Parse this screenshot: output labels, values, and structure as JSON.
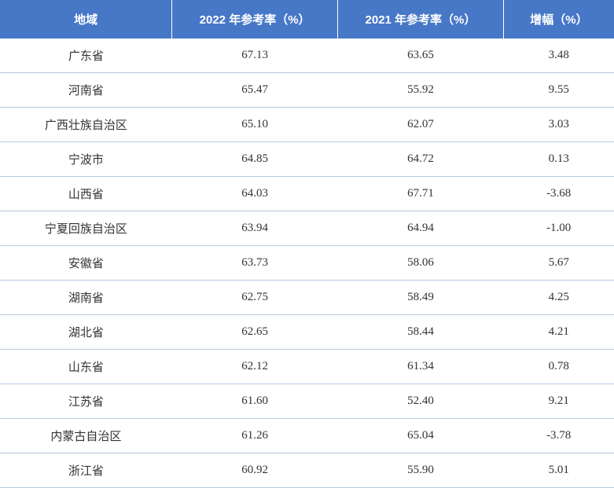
{
  "table": {
    "type": "table",
    "header_background": "#4778c7",
    "header_text_color": "#ffffff",
    "border_color": "#b8c8e0",
    "cell_text_color": "#333333",
    "background_color": "#ffffff",
    "header_fontsize": 15,
    "cell_fontsize": 15,
    "columns": [
      "地域",
      "2022 年参考率（%）",
      "2021 年参考率（%）",
      "增幅（%）"
    ],
    "column_widths": [
      "28%",
      "27%",
      "27%",
      "18%"
    ],
    "rows": [
      [
        "广东省",
        "67.13",
        "63.65",
        "3.48"
      ],
      [
        "河南省",
        "65.47",
        "55.92",
        "9.55"
      ],
      [
        "广西壮族自治区",
        "65.10",
        "62.07",
        "3.03"
      ],
      [
        "宁波市",
        "64.85",
        "64.72",
        "0.13"
      ],
      [
        "山西省",
        "64.03",
        "67.71",
        "-3.68"
      ],
      [
        "宁夏回族自治区",
        "63.94",
        "64.94",
        "-1.00"
      ],
      [
        "安徽省",
        "63.73",
        "58.06",
        "5.67"
      ],
      [
        "湖南省",
        "62.75",
        "58.49",
        "4.25"
      ],
      [
        "湖北省",
        "62.65",
        "58.44",
        "4.21"
      ],
      [
        "山东省",
        "62.12",
        "61.34",
        "0.78"
      ],
      [
        "江苏省",
        "61.60",
        "52.40",
        "9.21"
      ],
      [
        "内蒙古自治区",
        "61.26",
        "65.04",
        "-3.78"
      ],
      [
        "浙江省",
        "60.92",
        "55.90",
        "5.01"
      ]
    ]
  }
}
